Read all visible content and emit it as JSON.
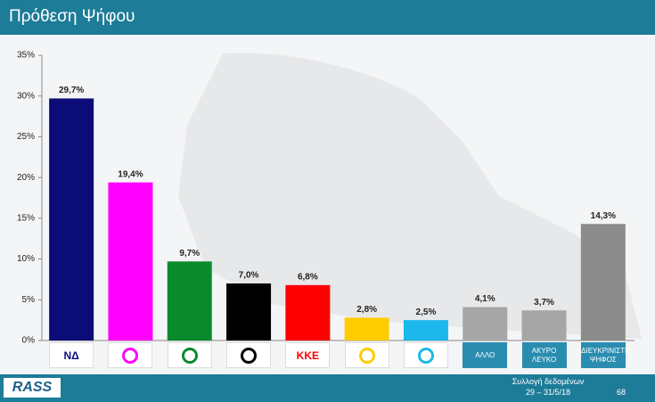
{
  "chart_data": {
    "type": "bar",
    "title": "Πρόθεση Ψήφου",
    "categories": [
      "ΝΔ",
      null,
      null,
      null,
      "ΚΚΕ",
      null,
      null,
      "ΑΛΛΟ",
      "ΑΚΥΡΟ ΛΕΥΚΟ",
      "ΑΔΙΕΥΚΡΙΝΙΣΤΗ ΨΗΦΟΣ"
    ],
    "values": [
      29.7,
      19.4,
      9.7,
      7.0,
      6.8,
      2.8,
      2.5,
      4.1,
      3.7,
      14.3
    ],
    "value_labels": [
      "29,7%",
      "19,4%",
      "9,7%",
      "7,0%",
      "6,8%",
      "2,8%",
      "2,5%",
      "4,1%",
      "3,7%",
      "14,3%"
    ],
    "colors": [
      "#0c0c78",
      "#ff00ff",
      "#0b8a2c",
      "#000000",
      "#ff0000",
      "#ffcc00",
      "#1cb8ec",
      "#a6a6a6",
      "#a6a6a6",
      "#8c8c8c"
    ],
    "ylim": [
      0,
      35
    ],
    "yticks": [
      {
        "value": 0,
        "label": "0%"
      },
      {
        "value": 5,
        "label": "5%"
      },
      {
        "value": 10,
        "label": "10%"
      },
      {
        "value": 15,
        "label": "15%"
      },
      {
        "value": 20,
        "label": "20%"
      },
      {
        "value": 25,
        "label": "25%"
      },
      {
        "value": 30,
        "label": "30%"
      },
      {
        "value": 35,
        "label": "35%"
      }
    ],
    "grid": false
  },
  "footer": {
    "logo": "RASS",
    "note": "Συλλογή δεδομένων",
    "dates": "29 – 31/5/18",
    "page": "68"
  }
}
